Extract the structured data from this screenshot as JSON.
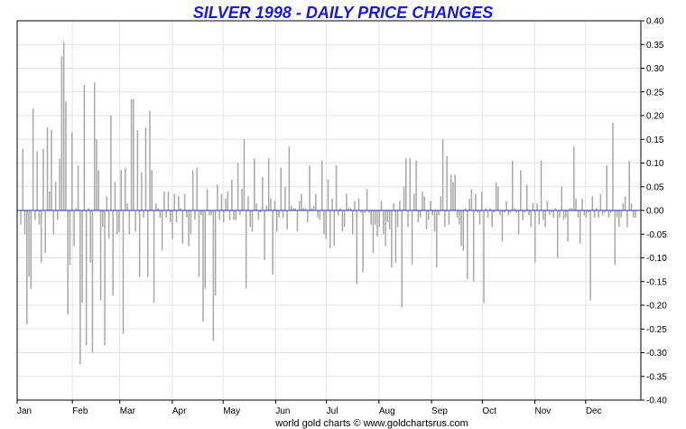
{
  "chart_data": {
    "type": "bar",
    "title": "SILVER 1998 - DAILY PRICE CHANGES",
    "footer": "world gold charts © www.goldchartsrus.com",
    "xlabel": "",
    "ylabel": "",
    "ylim": [
      -0.4,
      0.4
    ],
    "y_ticks": [
      "0.40",
      "0.35",
      "0.30",
      "0.25",
      "0.20",
      "0.15",
      "0.10",
      "0.05",
      "0.00",
      "-0.05",
      "-0.10",
      "-0.15",
      "-0.20",
      "-0.25",
      "-0.30",
      "-0.35",
      "-0.40"
    ],
    "months": [
      "Jan",
      "Feb",
      "Mar",
      "Apr",
      "May",
      "Jun",
      "Jul",
      "Aug",
      "Sep",
      "Oct",
      "Nov",
      "Dec"
    ],
    "grid": true,
    "bar_color": "#a8a8a8",
    "zero_line_color": "#2b2bcc",
    "values": [
      -0.03,
      0.13,
      -0.05,
      -0.24,
      -0.14,
      -0.165,
      0.215,
      -0.02,
      0.125,
      -0.03,
      -0.11,
      0.13,
      -0.09,
      0.175,
      0.04,
      0.17,
      -0.05,
      0.06,
      -0.02,
      0.11,
      0.325,
      0.355,
      0.23,
      -0.22,
      -0.115,
      0.165,
      -0.075,
      0.005,
      0.095,
      -0.325,
      -0.195,
      0.265,
      -0.285,
      0.005,
      -0.11,
      -0.3,
      0.27,
      0.15,
      0.085,
      -0.19,
      -0.035,
      -0.285,
      0.03,
      -0.06,
      0.2,
      -0.18,
      0.06,
      -0.05,
      -0.045,
      0.085,
      -0.26,
      0.09,
      0.015,
      -0.05,
      0.235,
      0.235,
      -0.045,
      0.17,
      -0.14,
      0.08,
      -0.015,
      0.175,
      -0.14,
      0.21,
      0.085,
      -0.195,
      0.015,
      0.005,
      -0.015,
      -0.085,
      0.04,
      -0.015,
      0.04,
      -0.025,
      -0.06,
      0.035,
      -0.025,
      0.03,
      0.005,
      -0.07,
      0.035,
      -0.015,
      -0.075,
      -0.05,
      0.085,
      -0.02,
      0.09,
      -0.14,
      -0.01,
      -0.235,
      -0.165,
      0.045,
      -0.01,
      -0.01,
      -0.275,
      -0.18,
      0.055,
      -0.02,
      0.035,
      -0.025,
      0.025,
      0.04,
      -0.02,
      0.065,
      -0.02,
      -0.02,
      0.1,
      -0.01,
      0.045,
      0.15,
      -0.165,
      0.03,
      -0.035,
      -0.045,
      0.11,
      0.015,
      -0.02,
      -0.005,
      0.07,
      -0.105,
      0.01,
      0.11,
      0.025,
      -0.135,
      0.02,
      -0.045,
      -0.015,
      0.09,
      -0.015,
      0.05,
      -0.04,
      0.135,
      0.01,
      0.005,
      0.005,
      -0.045,
      0.02,
      0.035,
      0.005,
      0.005,
      -0.025,
      0.095,
      0.005,
      0.01,
      0.035,
      -0.015,
      -0.02,
      0.105,
      -0.05,
      -0.06,
      0.065,
      -0.08,
      0.025,
      -0.075,
      0.095,
      -0.01,
      0.005,
      -0.045,
      -0.035,
      0.035,
      0.005,
      0.005,
      -0.05,
      0.02,
      -0.155,
      0.025,
      -0.005,
      -0.13,
      -0.005,
      0.045,
      -0.005,
      -0.03,
      -0.09,
      -0.03,
      -0.055,
      -0.035,
      0.02,
      -0.05,
      -0.075,
      -0.025,
      -0.04,
      -0.12,
      0.015,
      -0.11,
      -0.035,
      0.02,
      -0.205,
      0.05,
      0.11,
      -0.035,
      0.11,
      -0.115,
      0.035,
      0.105,
      -0.025,
      -0.015,
      0.04,
      0.03,
      -0.04,
      -0.02,
      0.02,
      -0.01,
      -0.045,
      -0.12,
      -0.01,
      0.03,
      0.15,
      -0.035,
      0.115,
      -0.03,
      0.075,
      0.06,
      0.075,
      -0.015,
      -0.03,
      -0.075,
      -0.085,
      0.005,
      -0.145,
      0.025,
      0.045,
      -0.15,
      0.035,
      -0.005,
      -0.03,
      0.04,
      -0.195,
      0.005,
      -0.015,
      0.005,
      -0.035,
      -0.005,
      0.06,
      0.05,
      -0.01,
      -0.065,
      -0.005,
      0.02,
      -0.01,
      -0.005,
      0.105,
      0.005,
      -0.005,
      -0.05,
      0.085,
      -0.02,
      -0.005,
      0.055,
      -0.01,
      -0.035,
      0.015,
      -0.11,
      0.015,
      -0.03,
      0.105,
      -0.02,
      -0.035,
      0.02,
      -0.01,
      -0.005,
      -0.015,
      0.005,
      -0.1,
      -0.015,
      0.05,
      -0.02,
      -0.015,
      -0.065,
      0.005,
      0.005,
      0.135,
      0.025,
      -0.015,
      -0.07,
      0.025,
      -0.01,
      -0.015,
      -0.005,
      -0.19,
      0.03,
      -0.015,
      0.005,
      -0.015,
      0.035,
      -0.01,
      -0.005,
      0.095,
      -0.015,
      -0.005,
      0.185,
      -0.115,
      -0.015,
      -0.035,
      -0.015,
      0.015,
      0.03,
      -0.035,
      0.105,
      0.015,
      -0.015,
      -0.015
    ]
  },
  "labels": {
    "title": "SILVER 1998 - DAILY PRICE CHANGES",
    "footer": "world gold charts © www.goldchartsrus.com"
  }
}
